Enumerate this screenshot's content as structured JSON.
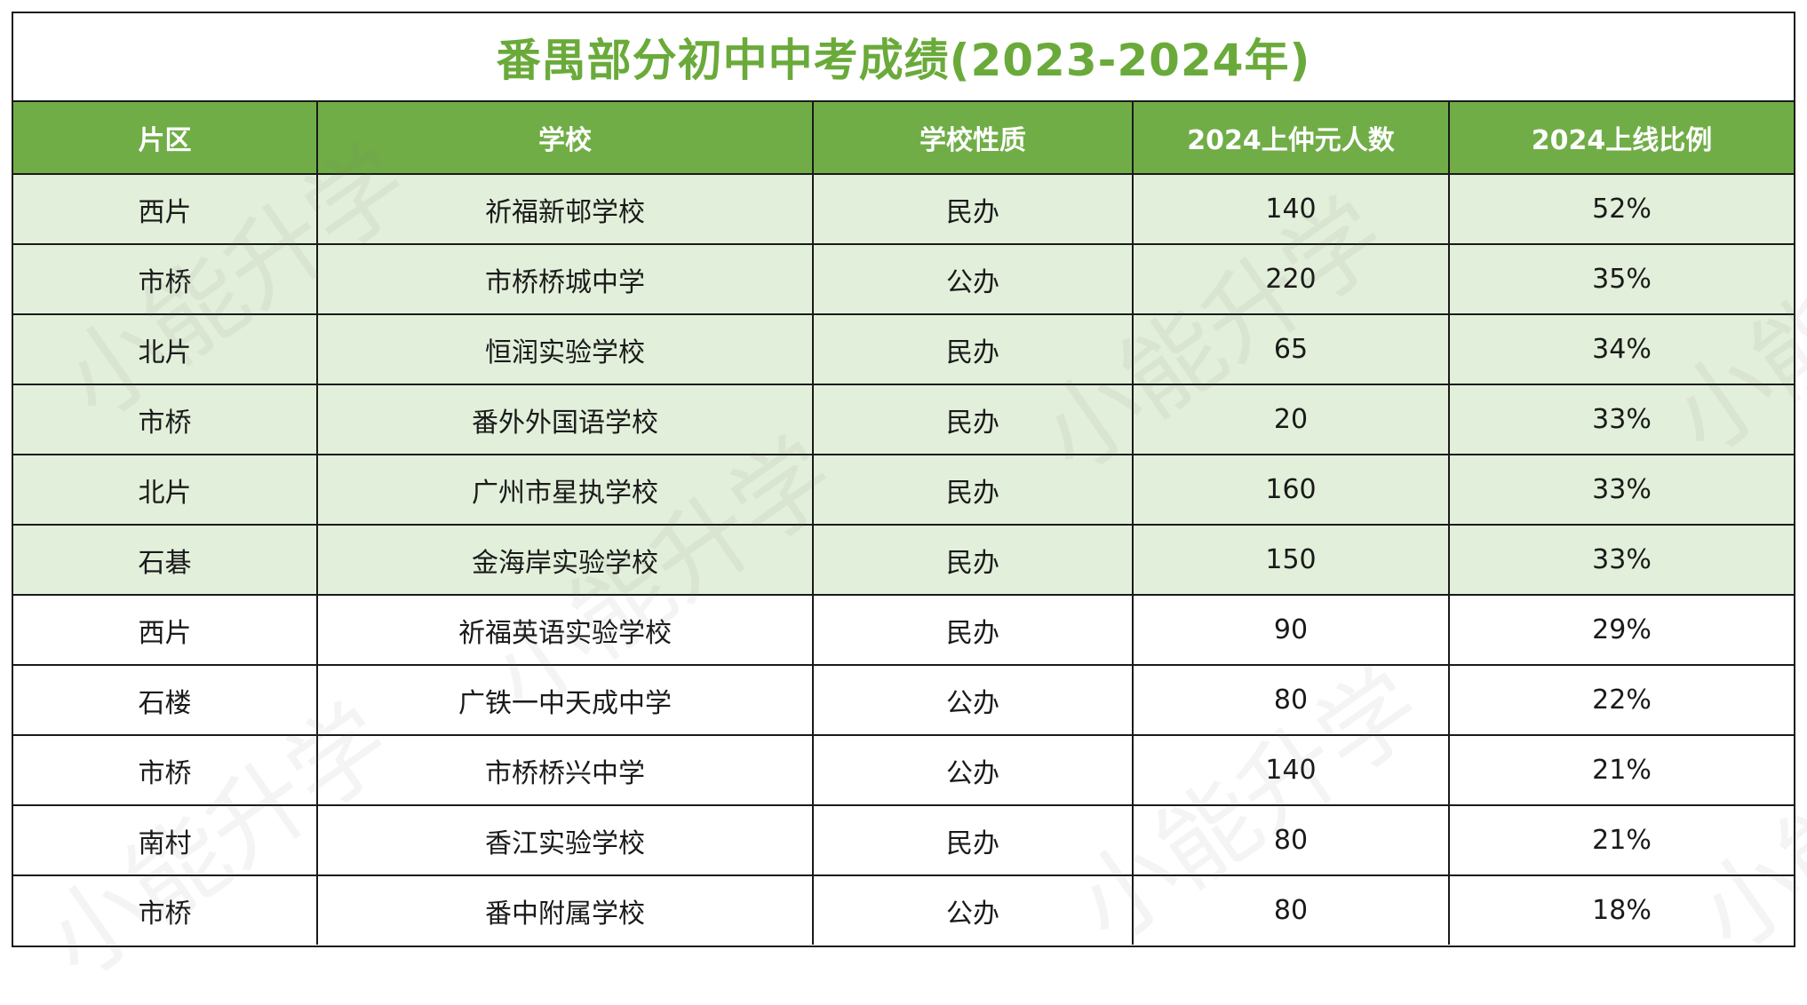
{
  "title": "番禺部分初中中考成绩(2023-2024年)",
  "header": {
    "col1": "片区",
    "col2": "学校",
    "col3": "学校性质",
    "col4": "2024上仲元人数",
    "col5": "2024上线比例"
  },
  "rows": [
    {
      "area": "西片",
      "school": "祈福新邨学校",
      "type": "民办",
      "count": "140",
      "rate": "52%",
      "highlight": true
    },
    {
      "area": "市桥",
      "school": "市桥桥城中学",
      "type": "公办",
      "count": "220",
      "rate": "35%",
      "highlight": true
    },
    {
      "area": "北片",
      "school": "恒润实验学校",
      "type": "民办",
      "count": "65",
      "rate": "34%",
      "highlight": true
    },
    {
      "area": "市桥",
      "school": "番外外国语学校",
      "type": "民办",
      "count": "20",
      "rate": "33%",
      "highlight": true
    },
    {
      "area": "北片",
      "school": "广州市星执学校",
      "type": "民办",
      "count": "160",
      "rate": "33%",
      "highlight": true
    },
    {
      "area": "石碁",
      "school": "金海岸实验学校",
      "type": "民办",
      "count": "150",
      "rate": "33%",
      "highlight": true
    },
    {
      "area": "西片",
      "school": "祈福英语实验学校",
      "type": "民办",
      "count": "90",
      "rate": "29%",
      "highlight": false
    },
    {
      "area": "石楼",
      "school": "广铁一中天成中学",
      "type": "公办",
      "count": "80",
      "rate": "22%",
      "highlight": false
    },
    {
      "area": "市桥",
      "school": "市桥桥兴中学",
      "type": "公办",
      "count": "140",
      "rate": "21%",
      "highlight": false
    },
    {
      "area": "南村",
      "school": "香江实验学校",
      "type": "民办",
      "count": "80",
      "rate": "21%",
      "highlight": false
    },
    {
      "area": "市桥",
      "school": "番中附属学校",
      "type": "公办",
      "count": "80",
      "rate": "18%",
      "highlight": false
    }
  ],
  "watermark": "小能升学",
  "colors": {
    "title": "#6aaa3a",
    "header_bg": "#70ad47",
    "highlight_bg": "#e2efda"
  }
}
